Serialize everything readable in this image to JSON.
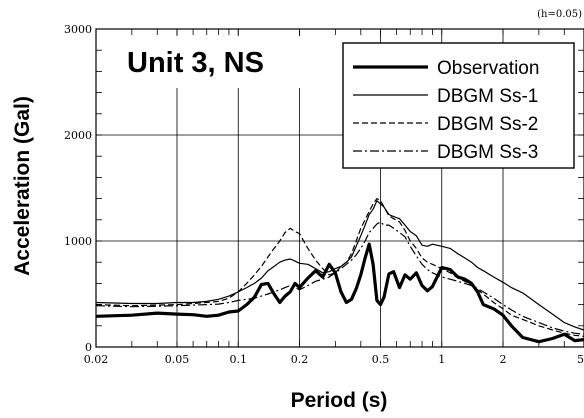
{
  "chart_data": {
    "type": "line",
    "title": "Unit 3, NS",
    "annotation": "(h=0.05)",
    "xlabel": "Period (s)",
    "ylabel": "Acceleration (Gal)",
    "x_scale": "log",
    "xlim": [
      0.02,
      5
    ],
    "ylim": [
      0,
      3000
    ],
    "x_ticks": [
      0.02,
      0.05,
      0.1,
      0.2,
      0.5,
      1,
      2,
      5
    ],
    "x_tick_labels": [
      "0.02",
      "0.05",
      "0.1",
      "0.2",
      "0.5",
      "1",
      "2",
      "5"
    ],
    "y_ticks": [
      0,
      1000,
      2000,
      3000
    ],
    "y_tick_labels": [
      "0",
      "1000",
      "2000",
      "3000"
    ],
    "grid": true,
    "legend_position": "top-right",
    "series": [
      {
        "name": "Observation",
        "style": "thick-solid",
        "x": [
          0.02,
          0.03,
          0.04,
          0.05,
          0.06,
          0.07,
          0.08,
          0.09,
          0.1,
          0.11,
          0.12,
          0.13,
          0.14,
          0.15,
          0.16,
          0.17,
          0.18,
          0.19,
          0.2,
          0.22,
          0.24,
          0.26,
          0.28,
          0.3,
          0.32,
          0.34,
          0.36,
          0.38,
          0.4,
          0.42,
          0.44,
          0.46,
          0.48,
          0.5,
          0.52,
          0.55,
          0.58,
          0.62,
          0.66,
          0.7,
          0.75,
          0.8,
          0.85,
          0.9,
          1.0,
          1.1,
          1.2,
          1.3,
          1.4,
          1.5,
          1.6,
          1.8,
          2.0,
          2.2,
          2.5,
          3.0,
          3.5,
          4.0,
          4.5,
          5.0
        ],
        "y": [
          290,
          300,
          320,
          310,
          305,
          290,
          300,
          330,
          340,
          400,
          470,
          590,
          600,
          500,
          420,
          480,
          520,
          600,
          560,
          650,
          720,
          660,
          780,
          700,
          520,
          420,
          450,
          550,
          680,
          840,
          970,
          780,
          440,
          400,
          470,
          690,
          710,
          560,
          680,
          640,
          700,
          580,
          530,
          570,
          750,
          730,
          660,
          640,
          600,
          520,
          400,
          360,
          300,
          200,
          90,
          50,
          80,
          120,
          60,
          70
        ]
      },
      {
        "name": "DBGM Ss-1",
        "style": "thin-solid",
        "x": [
          0.02,
          0.03,
          0.04,
          0.05,
          0.06,
          0.07,
          0.08,
          0.09,
          0.1,
          0.11,
          0.12,
          0.13,
          0.14,
          0.15,
          0.16,
          0.17,
          0.18,
          0.19,
          0.2,
          0.22,
          0.24,
          0.26,
          0.28,
          0.3,
          0.32,
          0.34,
          0.36,
          0.38,
          0.4,
          0.42,
          0.44,
          0.46,
          0.48,
          0.5,
          0.52,
          0.55,
          0.58,
          0.62,
          0.66,
          0.7,
          0.75,
          0.8,
          0.85,
          0.9,
          1.0,
          1.1,
          1.2,
          1.3,
          1.4,
          1.5,
          1.6,
          1.8,
          2.0,
          2.2,
          2.5,
          3.0,
          3.5,
          4.0,
          4.5,
          5.0
        ],
        "y": [
          420,
          410,
          410,
          420,
          420,
          430,
          450,
          480,
          520,
          560,
          600,
          650,
          720,
          760,
          800,
          820,
          830,
          810,
          790,
          780,
          740,
          700,
          710,
          740,
          760,
          800,
          850,
          950,
          1050,
          1150,
          1250,
          1300,
          1380,
          1350,
          1320,
          1250,
          1230,
          1210,
          1150,
          1090,
          1050,
          960,
          950,
          970,
          950,
          930,
          880,
          840,
          800,
          750,
          720,
          660,
          610,
          560,
          510,
          400,
          310,
          230,
          190,
          160
        ]
      },
      {
        "name": "DBGM Ss-2",
        "style": "dashed",
        "x": [
          0.02,
          0.03,
          0.04,
          0.05,
          0.06,
          0.07,
          0.08,
          0.09,
          0.1,
          0.11,
          0.12,
          0.13,
          0.14,
          0.15,
          0.16,
          0.17,
          0.18,
          0.19,
          0.2,
          0.22,
          0.24,
          0.26,
          0.28,
          0.3,
          0.32,
          0.34,
          0.36,
          0.38,
          0.4,
          0.42,
          0.44,
          0.46,
          0.48,
          0.5,
          0.52,
          0.55,
          0.58,
          0.62,
          0.66,
          0.7,
          0.75,
          0.8,
          0.85,
          0.9,
          1.0,
          1.1,
          1.2,
          1.3,
          1.4,
          1.5,
          1.6,
          1.8,
          2.0,
          2.2,
          2.5,
          3.0,
          3.5,
          4.0,
          4.5,
          5.0
        ],
        "y": [
          400,
          390,
          395,
          400,
          410,
          420,
          430,
          460,
          520,
          600,
          680,
          760,
          850,
          930,
          1000,
          1080,
          1120,
          1090,
          1070,
          930,
          820,
          740,
          680,
          700,
          760,
          800,
          880,
          1000,
          1120,
          1200,
          1280,
          1350,
          1400,
          1380,
          1320,
          1240,
          1210,
          1180,
          1100,
          1000,
          930,
          840,
          800,
          780,
          740,
          700,
          650,
          620,
          590,
          540,
          500,
          420,
          360,
          300,
          260,
          200,
          160,
          130,
          110,
          100
        ]
      },
      {
        "name": "DBGM Ss-3",
        "style": "dash-dot",
        "x": [
          0.02,
          0.03,
          0.04,
          0.05,
          0.06,
          0.07,
          0.08,
          0.09,
          0.1,
          0.11,
          0.12,
          0.13,
          0.14,
          0.15,
          0.16,
          0.17,
          0.18,
          0.19,
          0.2,
          0.22,
          0.24,
          0.26,
          0.28,
          0.3,
          0.32,
          0.34,
          0.36,
          0.38,
          0.4,
          0.42,
          0.44,
          0.46,
          0.48,
          0.5,
          0.52,
          0.55,
          0.58,
          0.62,
          0.66,
          0.7,
          0.75,
          0.8,
          0.85,
          0.9,
          1.0,
          1.1,
          1.2,
          1.3,
          1.4,
          1.5,
          1.6,
          1.8,
          2.0,
          2.2,
          2.5,
          3.0,
          3.5,
          4.0,
          4.5,
          5.0
        ],
        "y": [
          390,
          380,
          385,
          390,
          395,
          400,
          405,
          420,
          440,
          450,
          460,
          480,
          500,
          520,
          540,
          560,
          580,
          560,
          540,
          580,
          620,
          640,
          660,
          700,
          740,
          780,
          820,
          870,
          930,
          1000,
          1080,
          1120,
          1160,
          1180,
          1150,
          1150,
          1120,
          1080,
          1040,
          950,
          860,
          780,
          730,
          700,
          660,
          640,
          620,
          600,
          580,
          550,
          520,
          460,
          400,
          350,
          290,
          230,
          180,
          150,
          130,
          120
        ]
      }
    ]
  }
}
